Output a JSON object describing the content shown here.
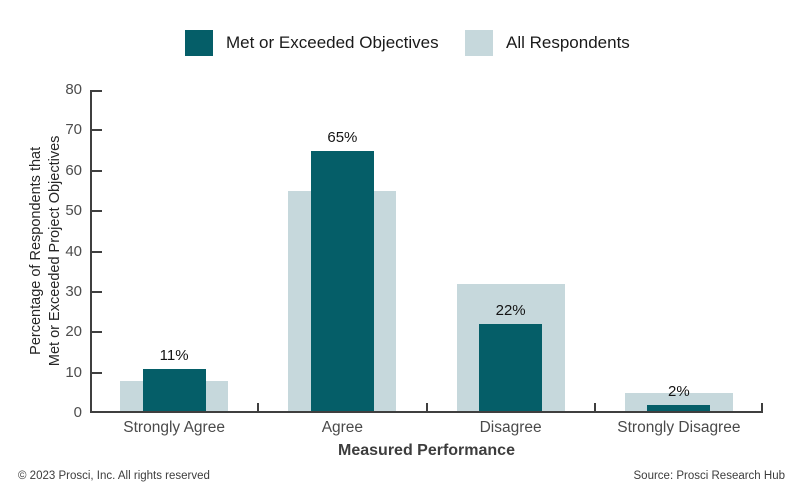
{
  "legend": {
    "items": [
      {
        "label": "Met or Exceeded Objectives",
        "color": "#055E68"
      },
      {
        "label": "All Respondents",
        "color": "#C6D8DC"
      }
    ]
  },
  "chart_data": {
    "type": "bar",
    "categories": [
      "Strongly Agree",
      "Agree",
      "Disagree",
      "Strongly Disagree"
    ],
    "series": [
      {
        "name": "Met or Exceeded Objectives",
        "values": [
          11,
          65,
          22,
          2
        ],
        "labels": [
          "11%",
          "65%",
          "22%",
          "2%"
        ],
        "color": "#055E68",
        "layer": "front"
      },
      {
        "name": "All Respondents",
        "values": [
          8,
          55,
          32,
          5
        ],
        "labels": [],
        "color": "#C6D8DC",
        "layer": "back"
      }
    ],
    "title": "",
    "xlabel": "Measured Performance",
    "ylabel": "Percentage of Respondents that Met or Exceeded Project Objectives",
    "ylabel_line1": "Percentage of Respondents that",
    "ylabel_line2": "Met or Exceeded Project Objectives",
    "ylim": [
      0,
      80
    ],
    "ytick_step": 10,
    "grid": false,
    "legend_position": "top"
  },
  "footer": {
    "left": "© 2023 Prosci, Inc. All rights reserved",
    "right": "Source: Prosci Research Hub"
  }
}
